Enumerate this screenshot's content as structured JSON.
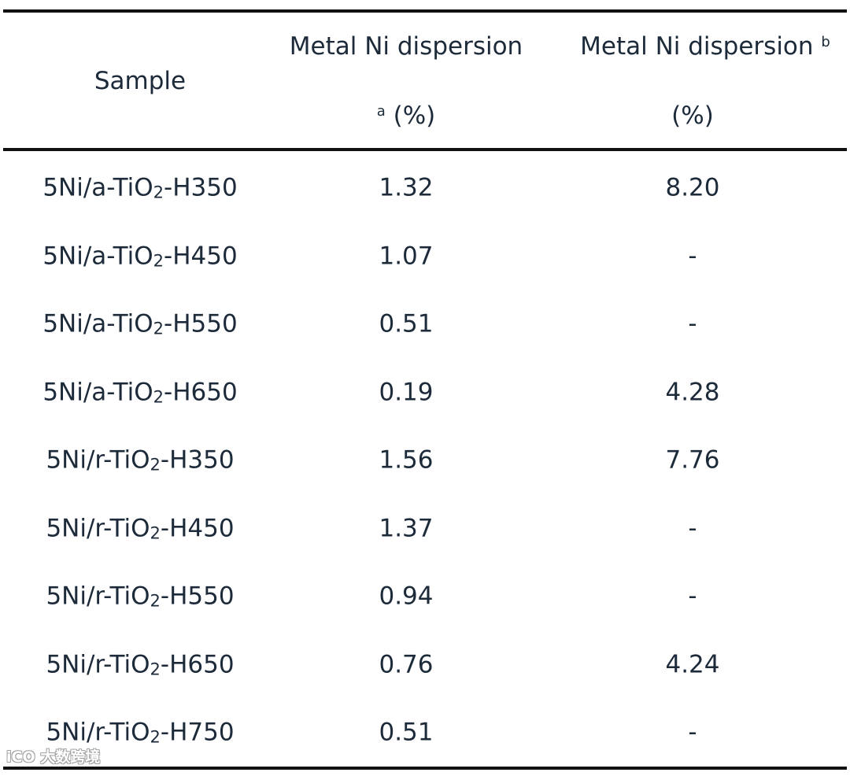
{
  "table": {
    "headers": {
      "sample": "Sample",
      "col2_line1": "Metal Ni dispersion",
      "col2_sup": "a",
      "col2_line2": "(%)",
      "col3_line1": "Metal Ni dispersion",
      "col3_sup": "b",
      "col3_line2": "(%)"
    },
    "rows": [
      {
        "prefix": "5Ni/a-TiO",
        "sub": "2",
        "suffix": "-H350",
        "dispersion_a": "1.32",
        "dispersion_b": "8.20"
      },
      {
        "prefix": "5Ni/a-TiO",
        "sub": "2",
        "suffix": "-H450",
        "dispersion_a": "1.07",
        "dispersion_b": "-"
      },
      {
        "prefix": "5Ni/a-TiO",
        "sub": "2",
        "suffix": "-H550",
        "dispersion_a": "0.51",
        "dispersion_b": "-"
      },
      {
        "prefix": "5Ni/a-TiO",
        "sub": "2",
        "suffix": "-H650",
        "dispersion_a": "0.19",
        "dispersion_b": "4.28"
      },
      {
        "prefix": "5Ni/r-TiO",
        "sub": "2",
        "suffix": "-H350",
        "dispersion_a": "1.56",
        "dispersion_b": "7.76"
      },
      {
        "prefix": "5Ni/r-TiO",
        "sub": "2",
        "suffix": "-H450",
        "dispersion_a": "1.37",
        "dispersion_b": "-"
      },
      {
        "prefix": "5Ni/r-TiO",
        "sub": "2",
        "suffix": "-H550",
        "dispersion_a": "0.94",
        "dispersion_b": "-"
      },
      {
        "prefix": "5Ni/r-TiO",
        "sub": "2",
        "suffix": "-H650",
        "dispersion_a": "0.76",
        "dispersion_b": "4.24"
      },
      {
        "prefix": "5Ni/r-TiO",
        "sub": "2",
        "suffix": "-H750",
        "dispersion_a": "0.51",
        "dispersion_b": "-"
      }
    ]
  },
  "watermark": "iCO 大数跨境"
}
